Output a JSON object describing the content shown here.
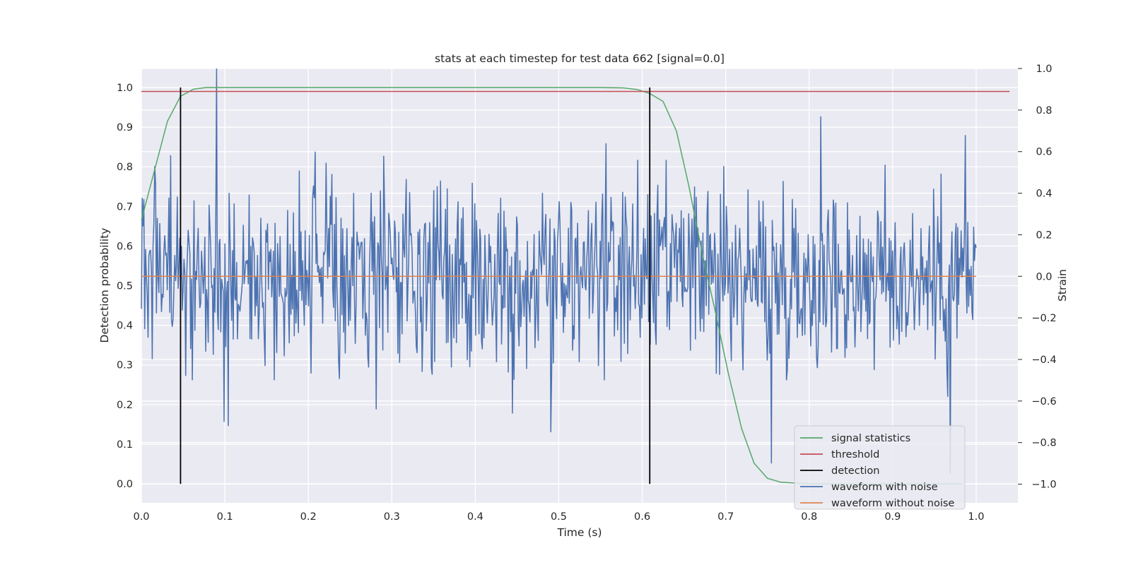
{
  "chart_data": {
    "type": "line",
    "title": "stats at each timestep for test data 662 [signal=0.0]",
    "xlabel": "Time (s)",
    "ylabel": "Detection probability",
    "ylabel_right": "Strain",
    "xlim": [
      0.0,
      1.05
    ],
    "ylim": [
      -0.048,
      1.048
    ],
    "ylim_right": [
      -1.09,
      1.0
    ],
    "xticks": [
      "0.0",
      "0.1",
      "0.2",
      "0.3",
      "0.4",
      "0.5",
      "0.6",
      "0.7",
      "0.8",
      "0.9",
      "1.0"
    ],
    "yticks": [
      "0.0",
      "0.1",
      "0.2",
      "0.3",
      "0.4",
      "0.5",
      "0.6",
      "0.7",
      "0.8",
      "0.9",
      "1.0"
    ],
    "yticks_right": [
      "−1.0",
      "−0.8",
      "−0.6",
      "−0.4",
      "−0.2",
      "0.0",
      "0.2",
      "0.4",
      "0.6",
      "0.8",
      "1.0"
    ],
    "grid": true,
    "legend_position": "lower-right",
    "series": [
      {
        "name": "signal statistics",
        "color": "#55a868",
        "axis": "left",
        "x": [
          0.0,
          0.0156,
          0.03125,
          0.0469,
          0.0625,
          0.078,
          0.094,
          0.109,
          0.125,
          0.25,
          0.5,
          0.55,
          0.578,
          0.594,
          0.609,
          0.625,
          0.641,
          0.656,
          0.672,
          0.688,
          0.703,
          0.719,
          0.734,
          0.75,
          0.766,
          0.781,
          0.797,
          0.813,
          0.828,
          0.984
        ],
        "y": [
          0.665,
          0.79,
          0.915,
          0.978,
          0.996,
          1.0,
          1.0,
          1.0,
          1.0,
          1.0,
          1.0,
          1.0,
          0.999,
          0.995,
          0.985,
          0.965,
          0.89,
          0.75,
          0.58,
          0.43,
          0.28,
          0.14,
          0.052,
          0.014,
          0.004,
          0.002,
          0.001,
          0.0,
          0.0,
          0.0
        ]
      },
      {
        "name": "threshold",
        "color": "#c44e52",
        "axis": "left",
        "x": [
          0.0,
          1.04
        ],
        "y": [
          0.99,
          0.99
        ]
      },
      {
        "name": "detection",
        "color": "#000000",
        "axis": "left",
        "x": [
          0.0469,
          0.0469,
          0.609,
          0.609
        ],
        "y": [
          0.0,
          1.0,
          0.0,
          1.0
        ]
      },
      {
        "name": "waveform with noise",
        "color": "#4c72b0",
        "axis": "right",
        "description": "noisy strain sampled densely over [0, 1] s, values roughly within -0.45..0.8 with occasional extremes",
        "x_range": [
          0.0,
          1.0
        ],
        "num_points": 1000,
        "anchors": [
          {
            "x": 0.09,
            "y": 1.0
          },
          {
            "x": 0.099,
            "y": -0.7
          },
          {
            "x": 0.104,
            "y": -0.72
          },
          {
            "x": 0.208,
            "y": 0.6
          },
          {
            "x": 0.281,
            "y": -0.64
          },
          {
            "x": 0.29,
            "y": 0.58
          },
          {
            "x": 0.444,
            "y": 0.65
          },
          {
            "x": 0.444,
            "y": -0.66
          },
          {
            "x": 0.49,
            "y": -0.75
          },
          {
            "x": 0.557,
            "y": 0.64
          },
          {
            "x": 0.755,
            "y": -0.9
          },
          {
            "x": 0.814,
            "y": 0.77
          },
          {
            "x": 0.966,
            "y": -0.58
          },
          {
            "x": 0.969,
            "y": -0.95
          },
          {
            "x": 0.987,
            "y": 0.68
          }
        ]
      },
      {
        "name": "waveform without noise",
        "color": "#dd8452",
        "axis": "right",
        "x": [
          0.0,
          1.0
        ],
        "y": [
          0.0,
          0.0
        ]
      }
    ]
  }
}
